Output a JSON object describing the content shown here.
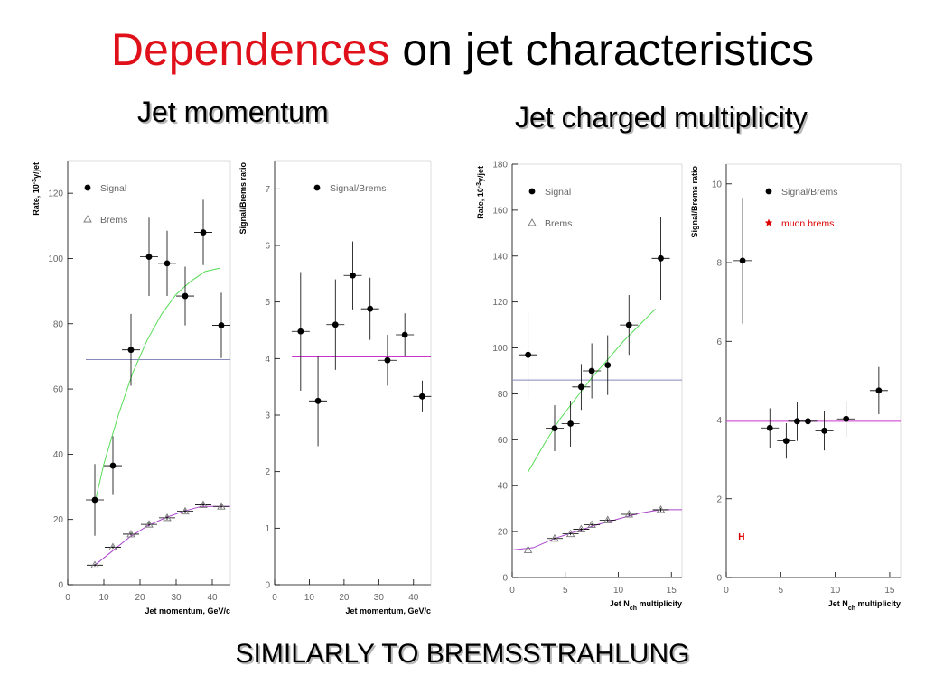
{
  "title": {
    "highlight": "Dependences",
    "rest": " on jet characteristics"
  },
  "subtitles": {
    "left": "Jet momentum",
    "right": "Jet charged multiplicity"
  },
  "footer": "SIMILARLY TO BREMSSTRAHLUNG",
  "colors": {
    "title_highlight": "#e0101a",
    "fit_green": "#55dd55",
    "fit_purple": "#aa44cc",
    "reference_line": "#8888bb",
    "ratio_line": "#cc33cc",
    "muon_brems": "#dd0000"
  },
  "chart_data": [
    {
      "type": "scatter",
      "ylabel_html": "Rate, 10<tspan baseline-shift='super' font-size='7'>-3</tspan>γ/jet",
      "ylabel": "Rate, 10-3γ/jet",
      "xlabel": "Jet momentum, GeV/c",
      "xlim": [
        0,
        45
      ],
      "ylim": [
        0,
        130
      ],
      "xticks": [
        0,
        10,
        20,
        30,
        40
      ],
      "yticks": [
        0,
        20,
        40,
        60,
        80,
        100,
        120
      ],
      "legend": [
        {
          "marker": "dot",
          "label": "Signal"
        },
        {
          "marker": "triangle",
          "label": "Brems"
        }
      ],
      "series": [
        {
          "name": "Signal",
          "marker": "dot",
          "x": [
            7.5,
            12.5,
            17.5,
            22.5,
            27.5,
            32.5,
            37.5,
            42.5
          ],
          "y": [
            26,
            36.5,
            72,
            100.5,
            98.5,
            88.5,
            108,
            79.5
          ],
          "yerr": [
            11,
            9,
            11,
            12,
            10,
            9,
            10,
            10
          ]
        },
        {
          "name": "Brems",
          "marker": "triangle",
          "x": [
            7.5,
            12.5,
            17.5,
            22.5,
            27.5,
            32.5,
            37.5,
            42.5
          ],
          "y": [
            6,
            11.5,
            15.5,
            18.5,
            20.5,
            22.5,
            24.5,
            24
          ],
          "yerr": [
            0.4,
            0.5,
            0.5,
            0.6,
            0.6,
            0.6,
            0.6,
            0.6
          ]
        }
      ],
      "fit_curves": [
        {
          "color": "green",
          "x": [
            7.5,
            10,
            14,
            18,
            22,
            26,
            30,
            34,
            38,
            42
          ],
          "y": [
            25,
            37,
            52,
            65,
            75,
            83,
            89,
            93,
            96,
            97
          ]
        },
        {
          "color": "purple",
          "x": [
            7.5,
            12,
            17,
            22,
            27,
            32,
            37,
            42,
            45
          ],
          "y": [
            6,
            10,
            14.5,
            18,
            20.5,
            22.5,
            24,
            24,
            24
          ]
        }
      ],
      "hlines": [
        {
          "y": 69,
          "x": [
            5,
            45
          ],
          "color": "reference"
        }
      ]
    },
    {
      "type": "scatter",
      "ylabel_html": "Signal/Brems ratio",
      "ylabel": "Signal/Brems ratio",
      "xlabel": "Jet momentum, GeV/c",
      "xlim": [
        0,
        45
      ],
      "ylim": [
        0,
        7.5
      ],
      "xticks": [
        0,
        10,
        20,
        30,
        40
      ],
      "yticks": [
        0,
        1,
        2,
        3,
        4,
        5,
        6,
        7
      ],
      "legend": [
        {
          "marker": "dot",
          "label": "Signal/Brems"
        }
      ],
      "series": [
        {
          "name": "Signal/Brems",
          "marker": "dot",
          "x": [
            7.5,
            12.5,
            17.5,
            22.5,
            27.5,
            32.5,
            37.5,
            42.5
          ],
          "y": [
            4.48,
            3.25,
            4.6,
            5.47,
            4.88,
            3.97,
            4.42,
            3.33
          ],
          "yerr": [
            1.05,
            0.8,
            0.8,
            0.6,
            0.55,
            0.45,
            0.38,
            0.28
          ]
        }
      ],
      "fit_curves": [],
      "hlines": [
        {
          "y": 4.03,
          "x": [
            5,
            45
          ],
          "color": "ratio"
        }
      ]
    },
    {
      "type": "scatter",
      "ylabel_html": "Rate, 10<tspan baseline-shift='super' font-size='7'>-3</tspan>γ/jet",
      "ylabel": "Rate, 10-3γ/jet",
      "xlabel_html": "Jet N<tspan baseline-shift='sub' font-size='7'>ch</tspan> multiplicity",
      "xlabel": "Jet Nch multiplicity",
      "xlim": [
        0,
        16
      ],
      "ylim": [
        0,
        180
      ],
      "xticks": [
        0,
        5,
        10,
        15
      ],
      "yticks": [
        0,
        20,
        40,
        60,
        80,
        100,
        120,
        140,
        160,
        180
      ],
      "legend": [
        {
          "marker": "dot",
          "label": "Signal"
        },
        {
          "marker": "triangle",
          "label": "Brems"
        }
      ],
      "series": [
        {
          "name": "Signal",
          "marker": "dot",
          "x": [
            1.5,
            4,
            5.5,
            6.5,
            7.5,
            9,
            11,
            14
          ],
          "y": [
            97,
            65,
            67,
            83,
            90,
            92.5,
            110,
            139
          ],
          "yerr": [
            19,
            10,
            10,
            10,
            12,
            13,
            13,
            18
          ]
        },
        {
          "name": "Brems",
          "marker": "triangle",
          "x": [
            1.5,
            4,
            5.5,
            6.5,
            7.5,
            9,
            11,
            14
          ],
          "y": [
            12,
            17,
            19,
            21,
            23,
            25,
            27.5,
            29.5
          ],
          "yerr": [
            0.5,
            0.6,
            0.6,
            0.6,
            0.6,
            0.7,
            0.7,
            0.8
          ]
        }
      ],
      "fit_curves": [
        {
          "color": "green",
          "x": [
            1.5,
            3,
            4.5,
            6,
            7.5,
            9,
            10.5,
            12,
            13.5
          ],
          "y": [
            46,
            58,
            69,
            78,
            87,
            95,
            103,
            110,
            117
          ]
        },
        {
          "color": "purple",
          "x": [
            0,
            2,
            4,
            6,
            8,
            10,
            12,
            14,
            16
          ],
          "y": [
            12,
            13,
            17,
            20,
            23,
            25.5,
            28,
            29.5,
            29.5
          ]
        }
      ],
      "hlines": [
        {
          "y": 86,
          "x": [
            0,
            16
          ],
          "color": "reference"
        }
      ]
    },
    {
      "type": "scatter",
      "ylabel_html": "Signal/Brems ratio",
      "ylabel": "Signal/Brems ratio",
      "xlabel_html": "Jet N<tspan baseline-shift='sub' font-size='7'>ch</tspan> multiplicity",
      "xlabel": "Jet Nch multiplicity",
      "xlim": [
        0,
        16
      ],
      "ylim": [
        0,
        10.5
      ],
      "xticks": [
        0,
        5,
        10,
        15
      ],
      "yticks": [
        0,
        2,
        4,
        6,
        8,
        10
      ],
      "legend": [
        {
          "marker": "dot",
          "label": "Signal/Brems"
        },
        {
          "marker": "star",
          "label": "muon brems"
        }
      ],
      "series": [
        {
          "name": "Signal/Brems",
          "marker": "dot",
          "x": [
            1.5,
            4,
            5.5,
            6.5,
            7.5,
            9,
            11,
            14
          ],
          "y": [
            8.05,
            3.8,
            3.47,
            3.97,
            3.97,
            3.73,
            4.03,
            4.75
          ],
          "yerr": [
            1.6,
            0.5,
            0.45,
            0.5,
            0.5,
            0.5,
            0.45,
            0.6
          ]
        }
      ],
      "fit_curves": [],
      "hlines": [
        {
          "y": 3.97,
          "x": [
            0,
            16
          ],
          "color": "ratio"
        }
      ],
      "annotations": [
        {
          "text": "H",
          "x": 1.1,
          "y": 1.05,
          "color": "muon_brems"
        }
      ]
    }
  ]
}
